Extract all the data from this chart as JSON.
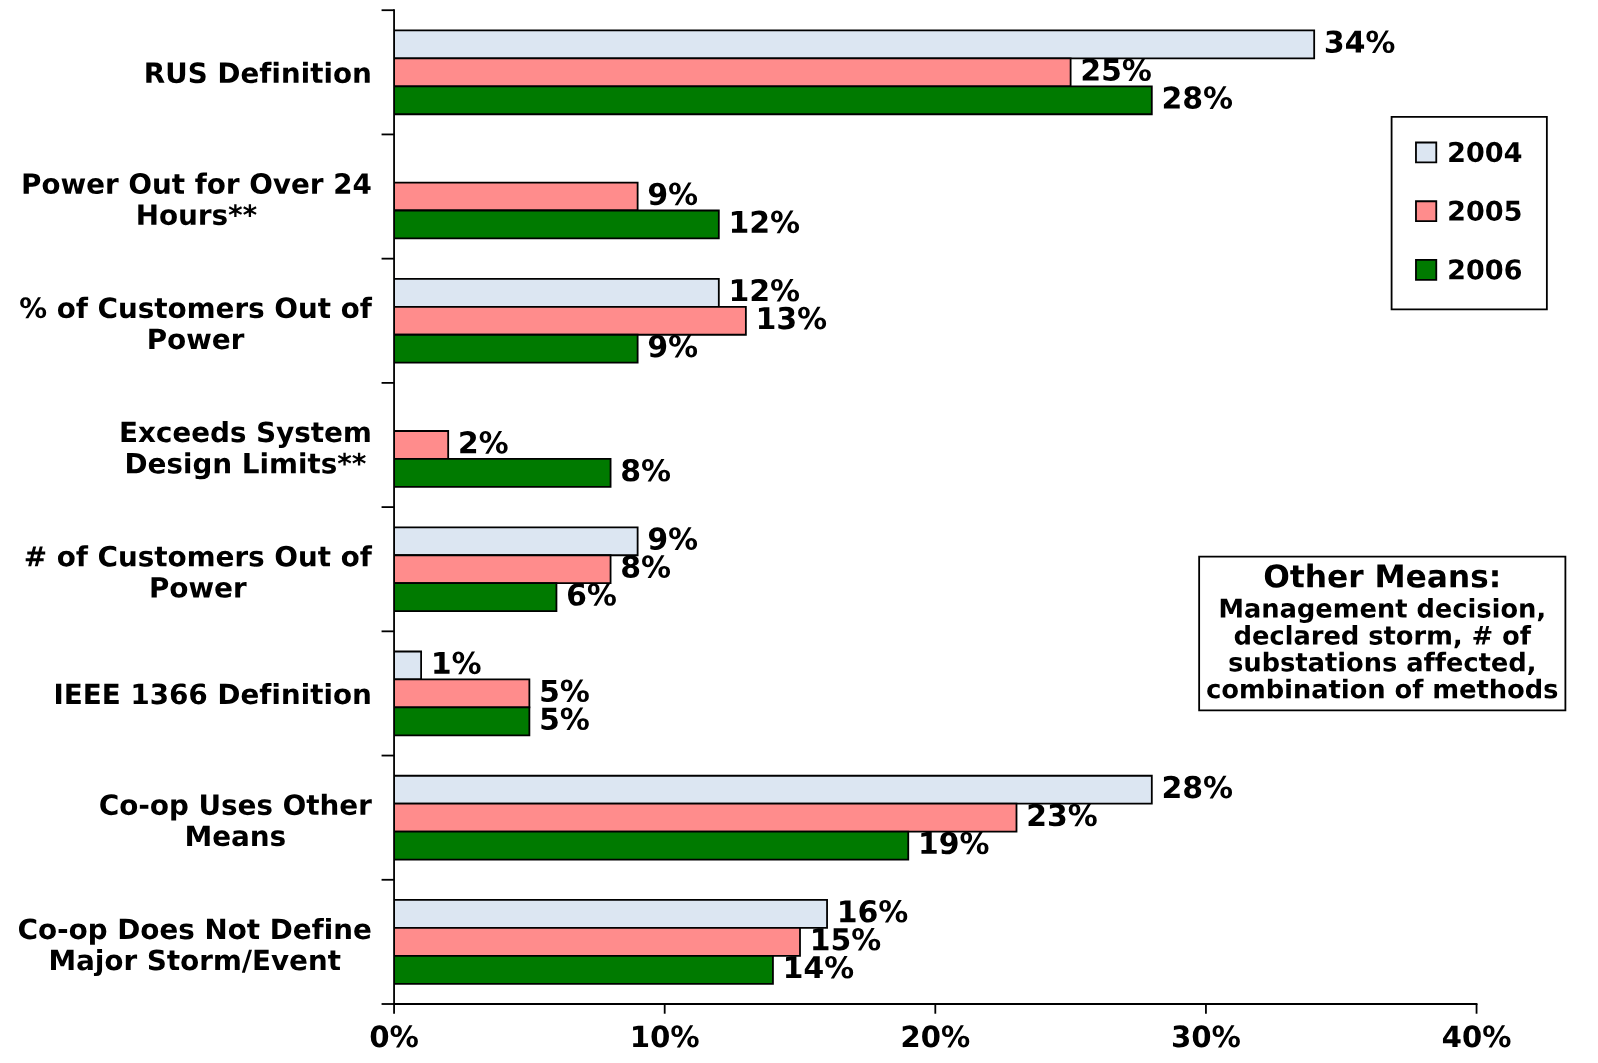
{
  "chart_data": {
    "type": "bar",
    "orientation": "horizontal",
    "categories": [
      "RUS Definition",
      "Power Out for Over 24\nHours**",
      "% of Customers Out of\nPower",
      "Exceeds System\nDesign Limits**",
      "# of Customers Out of\nPower",
      "IEEE 1366 Definition",
      "Co-op Uses Other\nMeans",
      "Co-op Does Not Define\nMajor Storm/Event"
    ],
    "series": [
      {
        "name": "2004",
        "color": "#dce6f2",
        "values": [
          34,
          null,
          12,
          null,
          9,
          1,
          28,
          16
        ],
        "value_labels": [
          "34%",
          null,
          "12%",
          null,
          "9%",
          "1%",
          "28%",
          "16%"
        ]
      },
      {
        "name": "2005",
        "color": "#ff8c8c",
        "values": [
          25,
          9,
          13,
          2,
          8,
          5,
          23,
          15
        ],
        "value_labels": [
          "25%",
          "9%",
          "13%",
          "2%",
          "8%",
          "5%",
          "23%",
          "15%"
        ]
      },
      {
        "name": "2006",
        "color": "#007a00",
        "values": [
          28,
          12,
          9,
          8,
          6,
          5,
          19,
          14
        ],
        "value_labels": [
          "28%",
          "12%",
          "9%",
          "8%",
          "6%",
          "5%",
          "19%",
          "14%"
        ]
      }
    ],
    "xlim": [
      0,
      40
    ],
    "xticks": [
      {
        "value": 0,
        "label": "0%"
      },
      {
        "value": 10,
        "label": "10%"
      },
      {
        "value": 20,
        "label": "20%"
      },
      {
        "value": 30,
        "label": "30%"
      },
      {
        "value": 40,
        "label": "40%"
      }
    ],
    "legend": "top right",
    "grid": false,
    "annotations": [
      "Other Means:",
      "Management decision,\ndeclared storm, # of\nsubstations affected,\ncombination of methods"
    ]
  }
}
